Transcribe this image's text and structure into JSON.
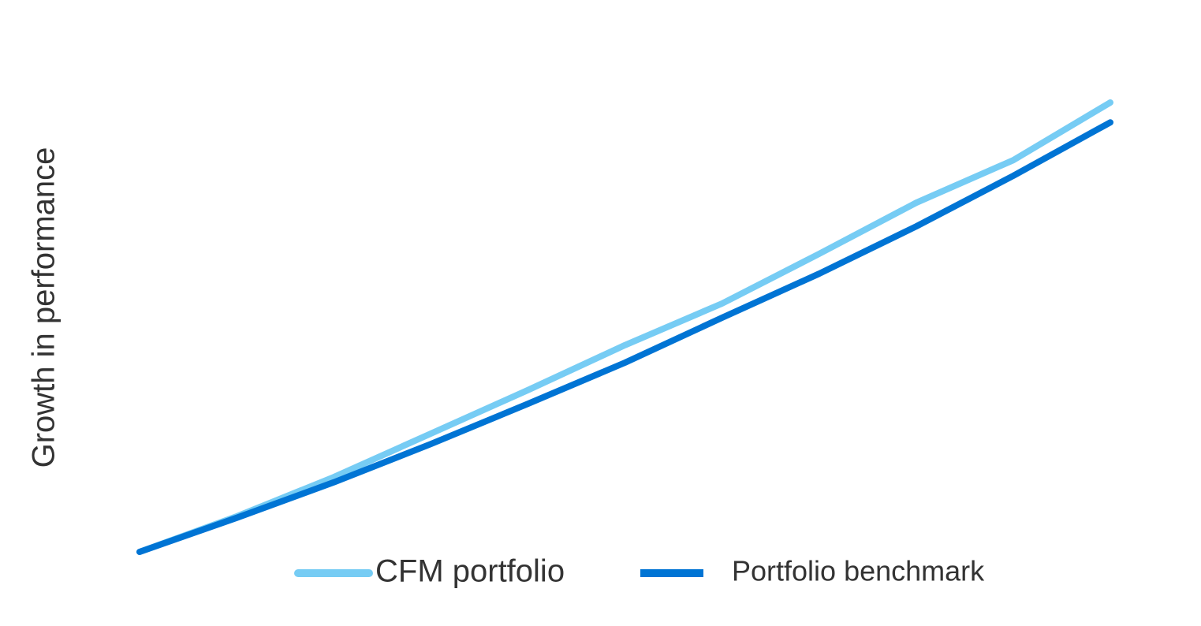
{
  "chart_data": {
    "type": "line",
    "y_label": "Growth in performance",
    "categories": [
      null,
      null,
      null,
      null,
      null,
      null,
      null,
      null,
      null,
      null,
      null
    ],
    "series": [
      {
        "name": "CFM portfolio",
        "color": "#76ccf4",
        "values": [
          0,
          7.5,
          15.8,
          25,
          34.2,
          43.7,
          52.5,
          63,
          73.8,
          82.8,
          95
        ]
      },
      {
        "name": "Portfolio benchmark",
        "color": "#0074d4",
        "values": [
          0,
          7.2,
          14.7,
          22.8,
          31.3,
          40,
          49.5,
          58.8,
          68.8,
          79.5,
          90.8
        ]
      }
    ],
    "ylim": [
      0,
      100
    ]
  }
}
